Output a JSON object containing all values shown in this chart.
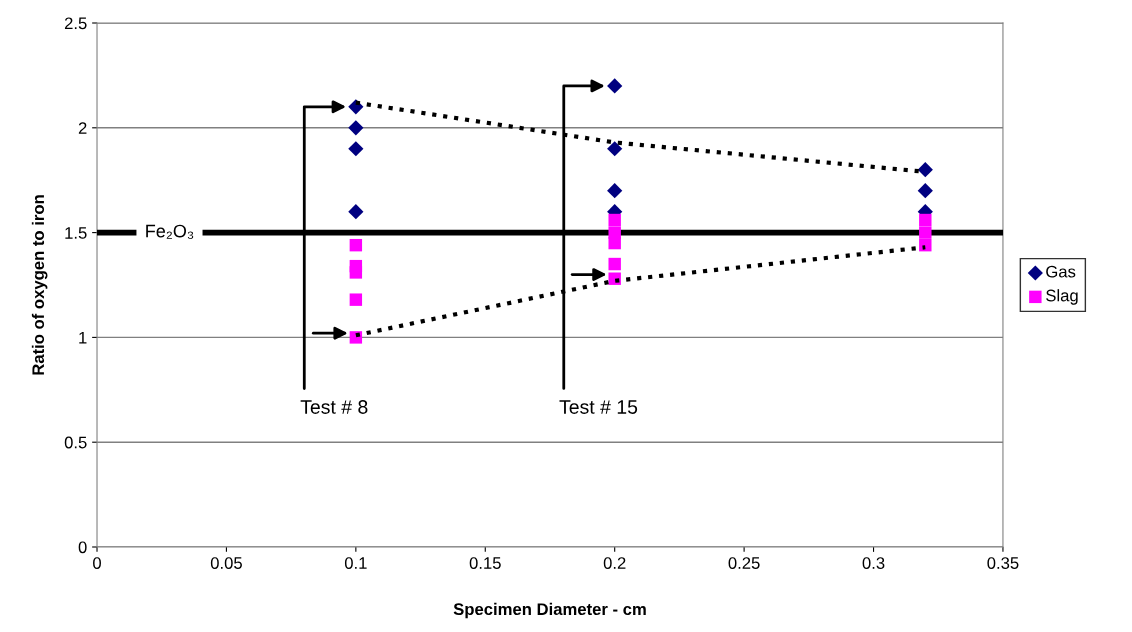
{
  "chart_data": {
    "type": "scatter",
    "xlabel": "Specimen Diameter - cm",
    "ylabel": "Ratio of oxygen to iron",
    "xlim": [
      0,
      0.35
    ],
    "xticks": [
      0,
      0.05,
      0.1,
      0.15,
      0.2,
      0.25,
      0.3,
      0.35
    ],
    "ylim": [
      0,
      2.5
    ],
    "yticks": [
      0,
      0.5,
      1,
      1.5,
      2,
      2.5
    ],
    "grid": "y",
    "legend": "right",
    "series": [
      {
        "name": "Gas",
        "type": "scatter",
        "marker": "diamond",
        "color": "#000080",
        "x": [
          0.1,
          0.1,
          0.1,
          0.1,
          0.2,
          0.2,
          0.2,
          0.2,
          0.32,
          0.32,
          0.32
        ],
        "values": [
          2.1,
          2.0,
          1.9,
          1.6,
          2.2,
          1.9,
          1.7,
          1.6,
          1.8,
          1.7,
          1.6
        ]
      },
      {
        "name": "Slag",
        "type": "scatter",
        "marker": "square",
        "color": "#ff00ff",
        "x": [
          0.1,
          0.1,
          0.1,
          0.1,
          0.1,
          0.2,
          0.2,
          0.2,
          0.2,
          0.2,
          0.32,
          0.32,
          0.32
        ],
        "values": [
          1.44,
          1.34,
          1.31,
          1.18,
          1.0,
          1.56,
          1.5,
          1.45,
          1.35,
          1.28,
          1.56,
          1.5,
          1.44
        ]
      },
      {
        "type": "line",
        "line_style": "dotted",
        "color": "#000000",
        "x": [
          0.1,
          0.2,
          0.32
        ],
        "values": [
          2.12,
          1.93,
          1.79
        ]
      },
      {
        "type": "line",
        "line_style": "dotted",
        "color": "#000000",
        "x": [
          0.1,
          0.2,
          0.32
        ],
        "values": [
          1.01,
          1.27,
          1.43
        ]
      }
    ],
    "ref_lines": [
      {
        "axis": "y",
        "value": 1.5,
        "label": "Fe₂O₃",
        "color": "#000000"
      }
    ],
    "annotations": [
      "Test # 8",
      "Test # 15"
    ]
  }
}
